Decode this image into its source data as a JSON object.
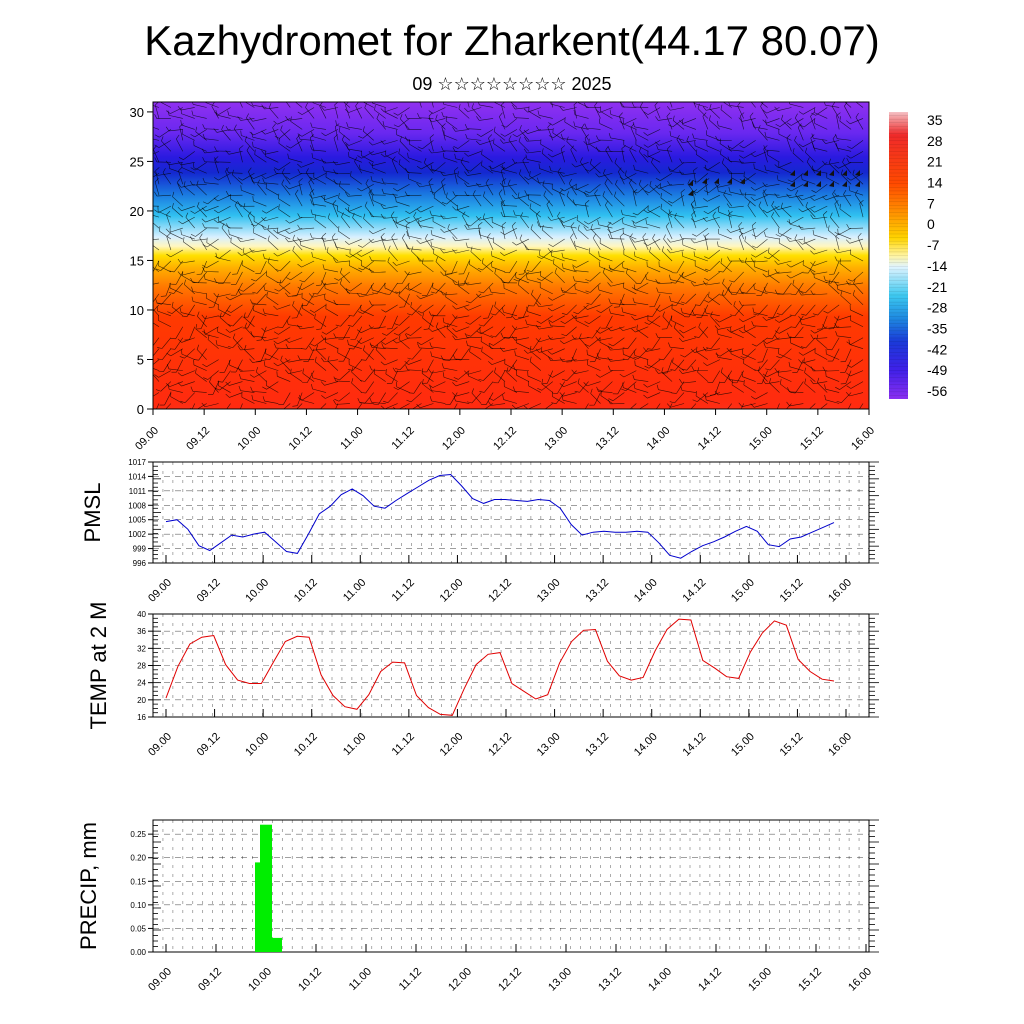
{
  "header": {
    "title": "Kazhydromet for Zharkent(44.17 80.07)",
    "subtitle": "09 ☆☆☆☆☆☆☆☆ 2025"
  },
  "chart_data": [
    {
      "type": "heatmap",
      "name_key": "cross-section",
      "x_tick_labels": [
        "09.00",
        "09.12",
        "10.00",
        "10.12",
        "11.00",
        "11.12",
        "12.00",
        "12.12",
        "13.00",
        "13.12",
        "14.00",
        "14.12",
        "15.00",
        "15.12",
        "16.00"
      ],
      "y_tick_labels": [
        "0",
        "5",
        "10",
        "15",
        "20",
        "25",
        "30"
      ],
      "ylim": [
        0,
        31
      ],
      "colorbar_labels": [
        "35",
        "28",
        "21",
        "14",
        "7",
        "0",
        "-7",
        "-14",
        "-21",
        "-28",
        "-35",
        "-42",
        "-49",
        "-56"
      ],
      "colorbar_stops": [
        "#f4c0c4",
        "#ef2a2a",
        "#ff5a00",
        "#ff9800",
        "#ffd400",
        "#fff4a0",
        "#e0f4ff",
        "#3cc8f0",
        "#1e88e0",
        "#1a3ad8",
        "#4020e8",
        "#8a30f0"
      ]
    },
    {
      "type": "line",
      "name_key": "pmsl",
      "ylabel": "PMSL",
      "y_tick_labels": [
        "996",
        "999",
        "1002",
        "1005",
        "1008",
        "1011",
        "1014",
        "1017"
      ],
      "ylim": [
        996,
        1017
      ],
      "x_tick_labels": [
        "09.00",
        "09.12",
        "10.00",
        "10.12",
        "11.00",
        "11.12",
        "12.00",
        "12.12",
        "13.00",
        "13.12",
        "14.00",
        "14.12",
        "15.00",
        "15.12",
        "16.00"
      ],
      "series_color": "#0000cc",
      "values": [
        1004.6,
        1005.0,
        1003.0,
        999.6,
        998.6,
        1000.2,
        1001.8,
        1001.4,
        1002.0,
        1002.4,
        1000.4,
        998.4,
        998.0,
        1002.0,
        1006.2,
        1007.8,
        1010.2,
        1011.4,
        1010.0,
        1007.8,
        1007.4,
        1009.0,
        1010.4,
        1011.8,
        1013.2,
        1014.2,
        1014.4,
        1012.0,
        1009.4,
        1008.4,
        1009.2,
        1009.2,
        1009.0,
        1008.8,
        1009.2,
        1009.0,
        1007.4,
        1004.0,
        1001.8,
        1002.4,
        1002.6,
        1002.4,
        1002.4,
        1002.6,
        1002.4,
        1000.2,
        997.6,
        997.0,
        998.4,
        999.6,
        1000.4,
        1001.4,
        1002.6,
        1003.6,
        1002.6,
        999.8,
        999.4,
        1001.0,
        1001.4,
        1002.4,
        1003.4,
        1004.4
      ]
    },
    {
      "type": "line",
      "name_key": "temp",
      "ylabel": "TEMP at 2 M",
      "y_tick_labels": [
        "16",
        "20",
        "24",
        "28",
        "32",
        "36",
        "40"
      ],
      "ylim": [
        16,
        40
      ],
      "x_tick_labels": [
        "09.00",
        "09.12",
        "10.00",
        "10.12",
        "11.00",
        "11.12",
        "12.00",
        "12.12",
        "13.00",
        "13.12",
        "14.00",
        "14.12",
        "15.00",
        "15.12",
        "16.00"
      ],
      "series_color": "#e00000",
      "values": [
        20.4,
        27.8,
        33.0,
        34.6,
        35.0,
        28.2,
        24.6,
        23.8,
        23.8,
        28.8,
        33.6,
        34.8,
        34.6,
        25.8,
        21.0,
        18.4,
        17.8,
        21.2,
        26.6,
        28.8,
        28.6,
        21.0,
        18.2,
        16.6,
        16.4,
        22.6,
        28.2,
        30.6,
        31.0,
        23.8,
        22.0,
        20.2,
        21.2,
        28.6,
        33.6,
        36.2,
        36.4,
        29.0,
        25.6,
        24.6,
        25.2,
        31.4,
        36.4,
        38.8,
        38.6,
        29.2,
        27.4,
        25.4,
        25.0,
        31.2,
        35.6,
        38.4,
        37.4,
        29.4,
        26.6,
        24.8,
        24.4
      ]
    },
    {
      "type": "bar",
      "name_key": "precip",
      "ylabel": "PRECIP, mm",
      "y_tick_labels": [
        "0.00",
        "0.05",
        "0.10",
        "0.15",
        "0.20",
        "0.25"
      ],
      "ylim": [
        0,
        0.28
      ],
      "x_tick_labels": [
        "09.00",
        "09.12",
        "10.00",
        "10.12",
        "11.00",
        "11.12",
        "12.00",
        "12.12",
        "13.00",
        "13.12",
        "14.00",
        "14.12",
        "15.00",
        "15.12",
        "16.00"
      ],
      "bar_color": "#00ee00",
      "bars": [
        {
          "x": 1.9,
          "value": 0.19
        },
        {
          "x": 2.0,
          "value": 0.27
        },
        {
          "x": 2.2,
          "value": 0.03
        }
      ]
    }
  ]
}
